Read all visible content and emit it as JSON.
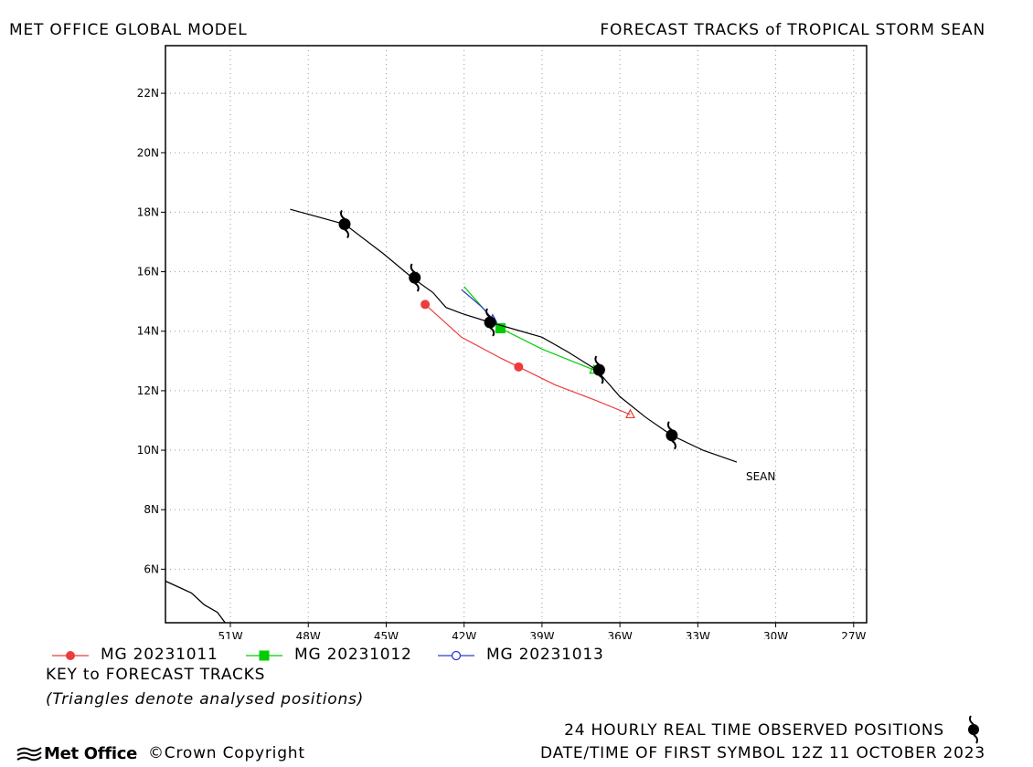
{
  "header": {
    "left_title": "MET OFFICE GLOBAL MODEL",
    "right_title": "FORECAST TRACKS of TROPICAL STORM SEAN"
  },
  "map": {
    "lon_range": [
      -53.5,
      -26.5
    ],
    "lat_range": [
      4.2,
      23.6
    ],
    "lon_ticks": [
      {
        "value": -51,
        "label": "51W"
      },
      {
        "value": -48,
        "label": "48W"
      },
      {
        "value": -45,
        "label": "45W"
      },
      {
        "value": -42,
        "label": "42W"
      },
      {
        "value": -39,
        "label": "39W"
      },
      {
        "value": -36,
        "label": "36W"
      },
      {
        "value": -33,
        "label": "33W"
      },
      {
        "value": -30,
        "label": "30W"
      },
      {
        "value": -27,
        "label": "27W"
      }
    ],
    "lat_ticks": [
      {
        "value": 6,
        "label": "6N"
      },
      {
        "value": 8,
        "label": "8N"
      },
      {
        "value": 10,
        "label": "10N"
      },
      {
        "value": 12,
        "label": "12N"
      },
      {
        "value": 14,
        "label": "14N"
      },
      {
        "value": 16,
        "label": "16N"
      },
      {
        "value": 18,
        "label": "18N"
      },
      {
        "value": 20,
        "label": "20N"
      },
      {
        "value": 22,
        "label": "22N"
      }
    ],
    "grid": true,
    "coastline": [
      [
        -53.5,
        5.6
      ],
      [
        -52.5,
        5.2
      ],
      [
        -52.0,
        4.8
      ],
      [
        -51.5,
        4.55
      ],
      [
        -51.2,
        4.2
      ]
    ],
    "storm": {
      "name": "SEAN",
      "observed_track": [
        [
          -31.5,
          9.6
        ],
        [
          -32.8,
          10.0
        ],
        [
          -34.0,
          10.5
        ],
        [
          -35.0,
          11.1
        ],
        [
          -36.0,
          11.8
        ],
        [
          -36.9,
          12.7
        ],
        [
          -38.0,
          13.3
        ],
        [
          -39.0,
          13.8
        ],
        [
          -40.2,
          14.1
        ],
        [
          -41.0,
          14.3
        ],
        [
          -42.1,
          14.6
        ],
        [
          -42.7,
          14.8
        ],
        [
          -43.2,
          15.3
        ],
        [
          -44.0,
          15.8
        ],
        [
          -45.1,
          16.6
        ],
        [
          -46.6,
          17.6
        ],
        [
          -48.7,
          18.1
        ]
      ],
      "observed_positions": [
        [
          -46.6,
          17.6
        ],
        [
          -43.9,
          15.8
        ],
        [
          -41.0,
          14.3
        ],
        [
          -36.8,
          12.7
        ],
        [
          -34.0,
          10.5
        ]
      ],
      "color": "#000000"
    },
    "forecasts": [
      {
        "label": "MG 20231011",
        "color": "#ee3b3b",
        "marker": "circle",
        "track": [
          [
            -43.5,
            14.9
          ],
          [
            -42.1,
            13.8
          ],
          [
            -40.6,
            13.1
          ],
          [
            -39.9,
            12.8
          ],
          [
            -38.5,
            12.2
          ],
          [
            -37.0,
            11.7
          ],
          [
            -35.6,
            11.2
          ]
        ],
        "markers": [
          [
            -43.5,
            14.9
          ],
          [
            -39.9,
            12.8
          ]
        ],
        "triangle": [
          -35.6,
          11.2
        ]
      },
      {
        "label": "MG 20231012",
        "color": "#00cc00",
        "marker": "square",
        "track": [
          [
            -42.0,
            15.5
          ],
          [
            -41.3,
            14.8
          ],
          [
            -40.6,
            14.1
          ],
          [
            -39.0,
            13.4
          ],
          [
            -37.0,
            12.7
          ]
        ],
        "markers": [
          [
            -40.6,
            14.1
          ]
        ],
        "triangle": [
          -37.0,
          12.7
        ]
      },
      {
        "label": "MG 20231013",
        "color": "#2a3ccc",
        "marker": "open-circle",
        "track": [
          [
            -42.1,
            15.4
          ],
          [
            -41.3,
            14.8
          ],
          [
            -40.9,
            14.4
          ]
        ],
        "markers": [],
        "triangle": [
          -40.9,
          14.4
        ]
      }
    ]
  },
  "key": {
    "title": "KEY to FORECAST TRACKS",
    "note": "(Triangles denote analysed positions)"
  },
  "footer": {
    "observed_label": "24 HOURLY REAL TIME OBSERVED POSITIONS",
    "observed_icon": "tropical-storm-symbol-icon",
    "date_label": "DATE/TIME OF FIRST SYMBOL 12Z 11 OCTOBER 2023",
    "logo_text": "Met Office",
    "logo_icon": "met-office-waves-icon",
    "copyright": "©Crown Copyright"
  }
}
